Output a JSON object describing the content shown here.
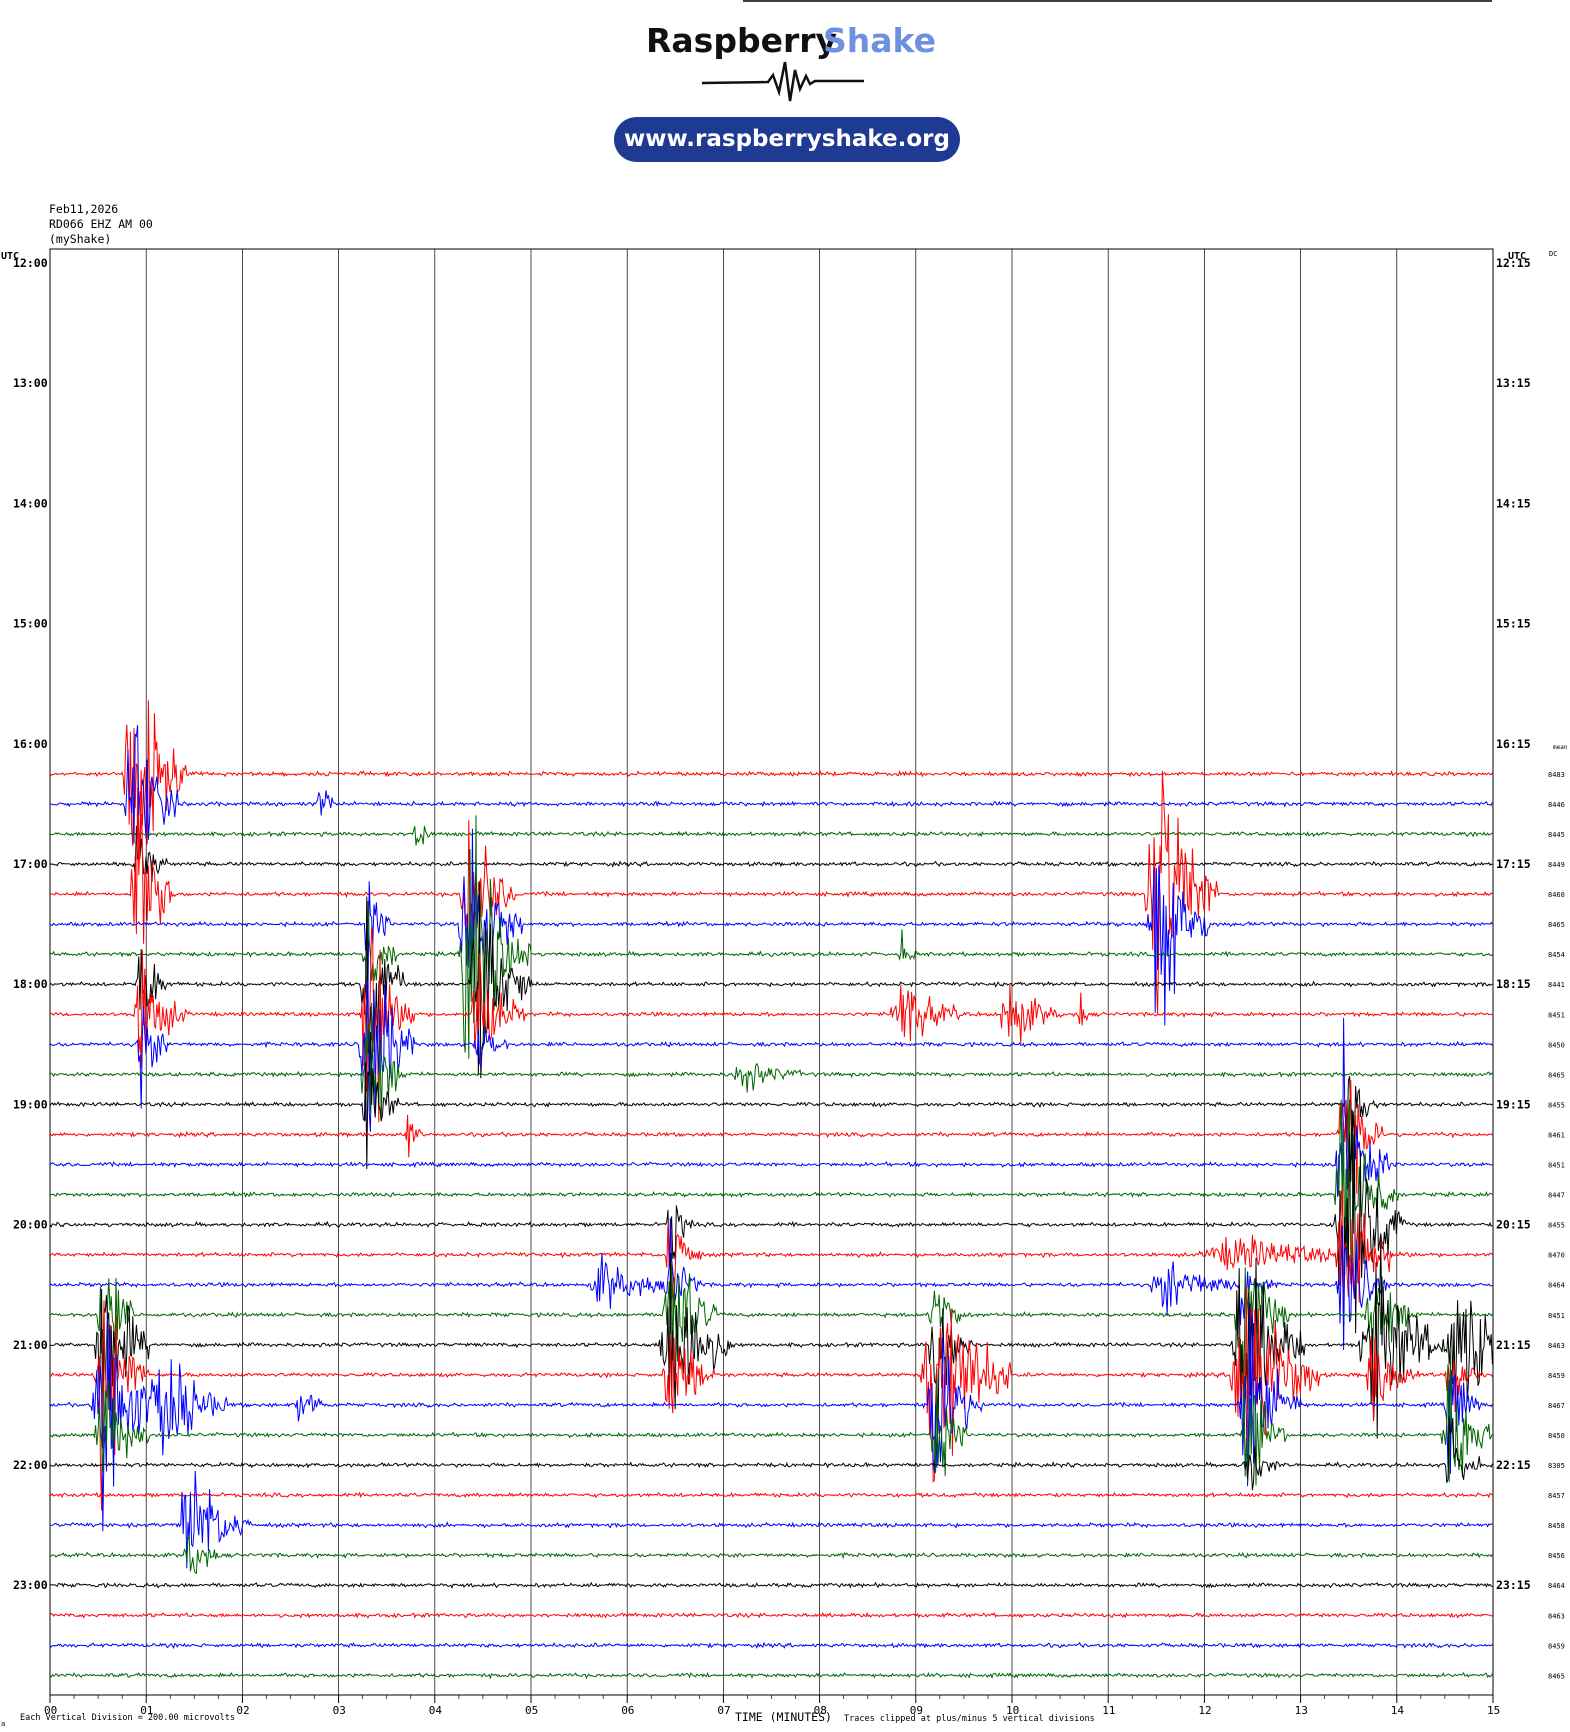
{
  "brand": {
    "name_left": "Raspberry",
    "name_right": "Shake",
    "url": "www.raspberryshake.org",
    "color_dark": "#111111",
    "color_light": "#6f8fe0",
    "pill_color": "#1f3a93"
  },
  "header": {
    "date": "Feb11,2026",
    "station": "RD066 EHZ AM 00",
    "source": "(myShake)"
  },
  "axes": {
    "left_unit": "UTC",
    "right_unit": "UTC",
    "right_corner": "DC",
    "mean_header": "mean",
    "xlabel": "TIME (MINUTES)",
    "x_ticks": [
      "00",
      "01",
      "02",
      "03",
      "04",
      "05",
      "06",
      "07",
      "08",
      "09",
      "10",
      "11",
      "12",
      "13",
      "14",
      "15"
    ],
    "left_hours": [
      "12:00",
      "13:00",
      "14:00",
      "15:00",
      "16:00",
      "17:00",
      "18:00",
      "19:00",
      "20:00",
      "21:00",
      "22:00",
      "23:00"
    ],
    "right_hours": [
      "12:15",
      "13:15",
      "14:15",
      "15:15",
      "16:15",
      "17:15",
      "18:15",
      "19:15",
      "20:15",
      "21:15",
      "22:15",
      "23:15"
    ]
  },
  "footer": {
    "division": "Each Vertical Division =  200.00 microvolts",
    "clip": "Traces clipped at plus/minus 5 vertical divisions",
    "corner": "a"
  },
  "chart_data": {
    "type": "line",
    "title": "",
    "x_range_minutes": [
      0,
      15
    ],
    "minutes_per_row": 15,
    "start_time": "12:00",
    "grid": true,
    "trace_colors": [
      "#ff0000",
      "#0000ff",
      "#006600",
      "#000000"
    ],
    "first_row_with_data": 17,
    "dc_offsets": [
      "8483",
      "8446",
      "8445",
      "8449",
      "8460",
      "8465",
      "8454",
      "8441",
      "8451",
      "8450",
      "8465",
      "8455",
      "8461",
      "8451",
      "8447",
      "8455",
      "8470",
      "8464",
      "8451",
      "8463",
      "8459",
      "8467",
      "8450",
      "8305",
      "8457",
      "8458",
      "8456",
      "8464",
      "8463",
      "8459",
      "8465"
    ],
    "events": [
      {
        "row": 17,
        "minute": 0.85,
        "amp": 9,
        "dur": 0.35
      },
      {
        "row": 18,
        "minute": 0.85,
        "amp": 6,
        "dur": 0.3
      },
      {
        "row": 18,
        "minute": 2.8,
        "amp": 2,
        "dur": 0.1
      },
      {
        "row": 19,
        "minute": 3.8,
        "amp": 2,
        "dur": 0.1
      },
      {
        "row": 20,
        "minute": 0.9,
        "amp": 3,
        "dur": 0.2
      },
      {
        "row": 21,
        "minute": 0.9,
        "amp": 7,
        "dur": 0.25
      },
      {
        "row": 21,
        "minute": 11.5,
        "amp": 10,
        "dur": 0.4
      },
      {
        "row": 22,
        "minute": 11.5,
        "amp": 7,
        "dur": 0.35
      },
      {
        "row": 21,
        "minute": 4.35,
        "amp": 6,
        "dur": 0.3
      },
      {
        "row": 22,
        "minute": 4.35,
        "amp": 7,
        "dur": 0.35
      },
      {
        "row": 23,
        "minute": 4.35,
        "amp": 8,
        "dur": 0.4
      },
      {
        "row": 24,
        "minute": 4.45,
        "amp": 7,
        "dur": 0.35
      },
      {
        "row": 25,
        "minute": 4.45,
        "amp": 4,
        "dur": 0.3
      },
      {
        "row": 26,
        "minute": 4.45,
        "amp": 2,
        "dur": 0.2
      },
      {
        "row": 22,
        "minute": 3.3,
        "amp": 3,
        "dur": 0.15
      },
      {
        "row": 23,
        "minute": 3.3,
        "amp": 4,
        "dur": 0.2
      },
      {
        "row": 24,
        "minute": 3.3,
        "amp": 6,
        "dur": 0.25
      },
      {
        "row": 25,
        "minute": 3.3,
        "amp": 8,
        "dur": 0.3
      },
      {
        "row": 26,
        "minute": 3.3,
        "amp": 8,
        "dur": 0.3
      },
      {
        "row": 27,
        "minute": 3.3,
        "amp": 6,
        "dur": 0.25
      },
      {
        "row": 28,
        "minute": 3.3,
        "amp": 4,
        "dur": 0.2
      },
      {
        "row": 29,
        "minute": 3.7,
        "amp": 2,
        "dur": 0.1
      },
      {
        "row": 25,
        "minute": 0.95,
        "amp": 4,
        "dur": 0.3
      },
      {
        "row": 26,
        "minute": 0.95,
        "amp": 3,
        "dur": 0.2
      },
      {
        "row": 24,
        "minute": 0.95,
        "amp": 3,
        "dur": 0.2
      },
      {
        "row": 25,
        "minute": 8.85,
        "amp": 2.5,
        "dur": 0.4
      },
      {
        "row": 25,
        "minute": 9.95,
        "amp": 2.5,
        "dur": 0.35
      },
      {
        "row": 25,
        "minute": 10.7,
        "amp": 2,
        "dur": 0.05
      },
      {
        "row": 23,
        "minute": 8.85,
        "amp": 1,
        "dur": 0.1
      },
      {
        "row": 27,
        "minute": 7.2,
        "amp": 1,
        "dur": 0.4
      },
      {
        "row": 28,
        "minute": 13.5,
        "amp": 3,
        "dur": 0.2
      },
      {
        "row": 29,
        "minute": 13.45,
        "amp": 5,
        "dur": 0.25
      },
      {
        "row": 30,
        "minute": 13.45,
        "amp": 6,
        "dur": 0.3
      },
      {
        "row": 31,
        "minute": 13.45,
        "amp": 8,
        "dur": 0.35
      },
      {
        "row": 32,
        "minute": 13.45,
        "amp": 9,
        "dur": 0.4
      },
      {
        "row": 33,
        "minute": 13.45,
        "amp": 6,
        "dur": 0.3
      },
      {
        "row": 34,
        "minute": 13.45,
        "amp": 4,
        "dur": 0.3
      },
      {
        "row": 33,
        "minute": 12.3,
        "amp": 1,
        "dur": 1.2
      },
      {
        "row": 34,
        "minute": 5.75,
        "amp": 1.5,
        "dur": 0.5
      },
      {
        "row": 34,
        "minute": 11.6,
        "amp": 1.5,
        "dur": 0.6
      },
      {
        "row": 34,
        "minute": 6.45,
        "amp": 3,
        "dur": 0.2
      },
      {
        "row": 33,
        "minute": 6.45,
        "amp": 4,
        "dur": 0.2
      },
      {
        "row": 32,
        "minute": 6.45,
        "amp": 3,
        "dur": 0.15
      },
      {
        "row": 35,
        "minute": 6.45,
        "amp": 5,
        "dur": 0.3
      },
      {
        "row": 36,
        "minute": 6.45,
        "amp": 7,
        "dur": 0.4
      },
      {
        "row": 37,
        "minute": 6.45,
        "amp": 4,
        "dur": 0.3
      },
      {
        "row": 35,
        "minute": 0.55,
        "amp": 6,
        "dur": 0.2
      },
      {
        "row": 36,
        "minute": 0.55,
        "amp": 7,
        "dur": 0.3
      },
      {
        "row": 37,
        "minute": 0.55,
        "amp": 7,
        "dur": 0.3
      },
      {
        "row": 38,
        "minute": 0.55,
        "amp": 8,
        "dur": 0.4
      },
      {
        "row": 39,
        "minute": 0.55,
        "amp": 4,
        "dur": 0.3
      },
      {
        "row": 38,
        "minute": 1.2,
        "amp": 4,
        "dur": 0.4
      },
      {
        "row": 38,
        "minute": 2.6,
        "amp": 1.5,
        "dur": 0.2
      },
      {
        "row": 35,
        "minute": 9.2,
        "amp": 3,
        "dur": 0.2
      },
      {
        "row": 36,
        "minute": 9.2,
        "amp": 5,
        "dur": 0.25
      },
      {
        "row": 37,
        "minute": 9.2,
        "amp": 8,
        "dur": 0.5
      },
      {
        "row": 38,
        "minute": 9.2,
        "amp": 6,
        "dur": 0.3
      },
      {
        "row": 39,
        "minute": 9.2,
        "amp": 4,
        "dur": 0.2
      },
      {
        "row": 34,
        "minute": 12.4,
        "amp": 3,
        "dur": 0.2
      },
      {
        "row": 35,
        "minute": 12.4,
        "amp": 5,
        "dur": 0.3
      },
      {
        "row": 36,
        "minute": 12.4,
        "amp": 7,
        "dur": 0.4
      },
      {
        "row": 37,
        "minute": 12.4,
        "amp": 8,
        "dur": 0.5
      },
      {
        "row": 38,
        "minute": 12.45,
        "amp": 6,
        "dur": 0.35
      },
      {
        "row": 39,
        "minute": 12.45,
        "amp": 4,
        "dur": 0.25
      },
      {
        "row": 40,
        "minute": 12.45,
        "amp": 2,
        "dur": 0.2
      },
      {
        "row": 35,
        "minute": 13.75,
        "amp": 4,
        "dur": 0.3
      },
      {
        "row": 36,
        "minute": 13.75,
        "amp": 6,
        "dur": 0.5
      },
      {
        "row": 37,
        "minute": 13.75,
        "amp": 3,
        "dur": 0.3
      },
      {
        "row": 36,
        "minute": 14.65,
        "amp": 5,
        "dur": 0.45
      },
      {
        "row": 37,
        "minute": 14.55,
        "amp": 3,
        "dur": 0.2
      },
      {
        "row": 38,
        "minute": 14.55,
        "amp": 4,
        "dur": 0.2
      },
      {
        "row": 39,
        "minute": 14.55,
        "amp": 5,
        "dur": 0.3
      },
      {
        "row": 40,
        "minute": 14.55,
        "amp": 3,
        "dur": 0.2
      },
      {
        "row": 42,
        "minute": 1.45,
        "amp": 4,
        "dur": 0.4
      },
      {
        "row": 43,
        "minute": 1.45,
        "amp": 2,
        "dur": 0.2
      }
    ]
  }
}
